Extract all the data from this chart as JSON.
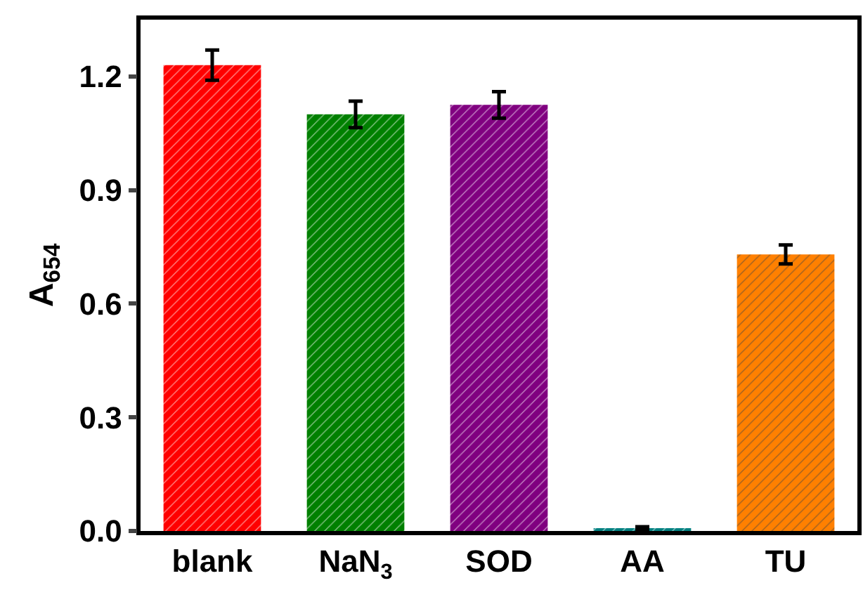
{
  "chart_data": {
    "type": "bar",
    "ylabel": "A$_{654}$",
    "categories": [
      "blank",
      "NaN$_{3}$",
      "SOD",
      "AA",
      "TU"
    ],
    "values": [
      1.23,
      1.1,
      1.125,
      0.007,
      0.73
    ],
    "errors": [
      0.04,
      0.035,
      0.035,
      0.004,
      0.025
    ],
    "colors": [
      "#ff0000",
      "#008000",
      "#800080",
      "#008080",
      "#ff8000"
    ],
    "ylim": [
      0,
      1.35
    ],
    "yticks": [
      {
        "value": 0,
        "label": "0.0"
      },
      {
        "value": 0.3,
        "label": "0.3"
      },
      {
        "value": 0.6,
        "label": "0.6"
      },
      {
        "value": 0.9,
        "label": "0.9"
      },
      {
        "value": 1.2,
        "label": "1.2"
      }
    ],
    "grid": false,
    "legend": false
  }
}
